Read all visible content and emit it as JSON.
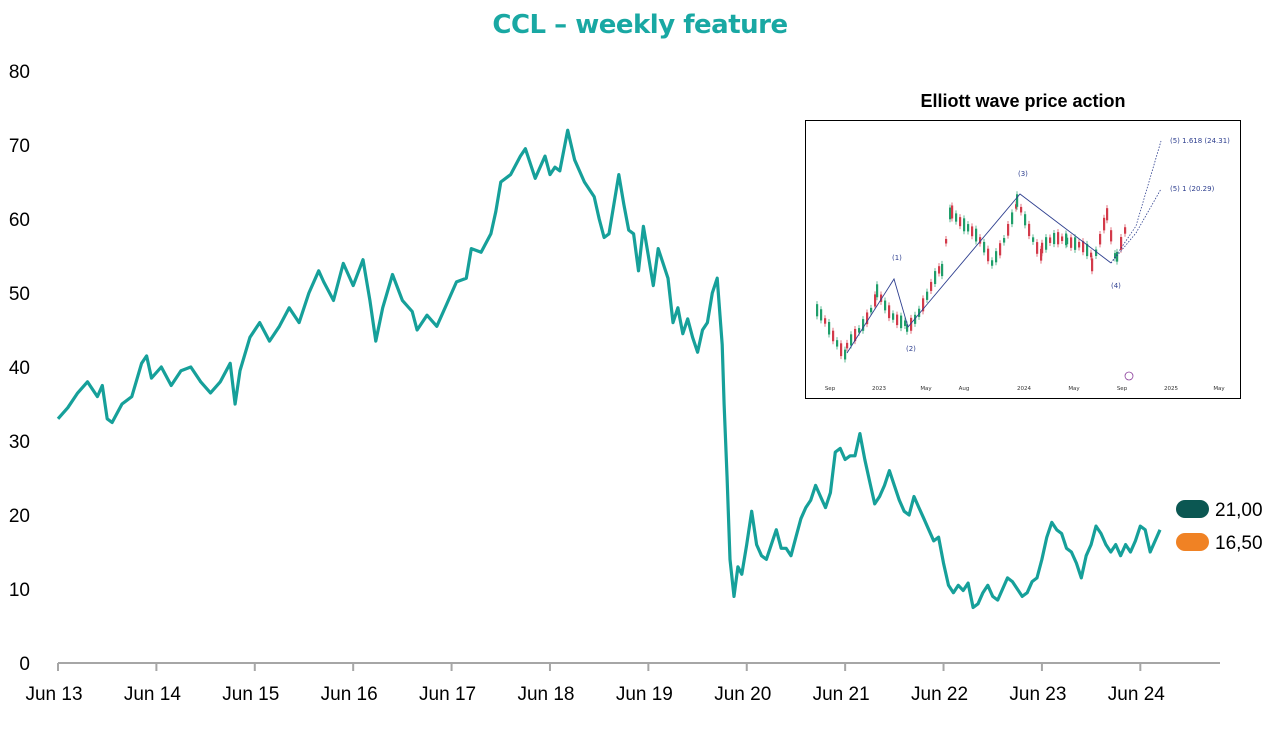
{
  "chart_data": {
    "type": "line",
    "title": "CCL – weekly feature",
    "xlabel": "",
    "ylabel": "",
    "ylim": [
      0,
      80
    ],
    "yticks": [
      0,
      10,
      20,
      30,
      40,
      50,
      60,
      70,
      80
    ],
    "xlim": [
      2013.45,
      2024.65
    ],
    "xticks": [
      {
        "label": "Jun 13",
        "x": 2013.45
      },
      {
        "label": "Jun 14",
        "x": 2014.45
      },
      {
        "label": "Jun 15",
        "x": 2015.45
      },
      {
        "label": "Jun 16",
        "x": 2016.45
      },
      {
        "label": "Jun 17",
        "x": 2017.45
      },
      {
        "label": "Jun 18",
        "x": 2018.45
      },
      {
        "label": "Jun 19",
        "x": 2019.45
      },
      {
        "label": "Jun 20",
        "x": 2020.45
      },
      {
        "label": "Jun 21",
        "x": 2021.45
      },
      {
        "label": "Jun 22",
        "x": 2022.45
      },
      {
        "label": "Jun 23",
        "x": 2023.45
      },
      {
        "label": "Jun 24",
        "x": 2024.45
      }
    ],
    "series": [
      {
        "color": "#16a09a",
        "points": [
          [
            2013.45,
            33.0
          ],
          [
            2013.55,
            34.5
          ],
          [
            2013.65,
            36.5
          ],
          [
            2013.75,
            38.0
          ],
          [
            2013.85,
            36.0
          ],
          [
            2013.9,
            37.5
          ],
          [
            2013.95,
            33.0
          ],
          [
            2014.0,
            32.5
          ],
          [
            2014.1,
            35.0
          ],
          [
            2014.2,
            36.0
          ],
          [
            2014.3,
            40.5
          ],
          [
            2014.35,
            41.5
          ],
          [
            2014.4,
            38.5
          ],
          [
            2014.5,
            40.0
          ],
          [
            2014.6,
            37.5
          ],
          [
            2014.7,
            39.5
          ],
          [
            2014.8,
            40.0
          ],
          [
            2014.9,
            38.0
          ],
          [
            2015.0,
            36.5
          ],
          [
            2015.1,
            38.0
          ],
          [
            2015.2,
            40.5
          ],
          [
            2015.25,
            35.0
          ],
          [
            2015.3,
            39.5
          ],
          [
            2015.4,
            44.0
          ],
          [
            2015.5,
            46.0
          ],
          [
            2015.6,
            43.5
          ],
          [
            2015.7,
            45.5
          ],
          [
            2015.8,
            48.0
          ],
          [
            2015.9,
            46.0
          ],
          [
            2016.0,
            50.0
          ],
          [
            2016.1,
            53.0
          ],
          [
            2016.15,
            51.5
          ],
          [
            2016.25,
            49.0
          ],
          [
            2016.35,
            54.0
          ],
          [
            2016.45,
            51.0
          ],
          [
            2016.55,
            54.5
          ],
          [
            2016.62,
            49.0
          ],
          [
            2016.68,
            43.5
          ],
          [
            2016.75,
            48.0
          ],
          [
            2016.85,
            52.5
          ],
          [
            2016.95,
            49.0
          ],
          [
            2017.05,
            47.5
          ],
          [
            2017.1,
            45.0
          ],
          [
            2017.2,
            47.0
          ],
          [
            2017.3,
            45.5
          ],
          [
            2017.4,
            48.5
          ],
          [
            2017.5,
            51.5
          ],
          [
            2017.6,
            52.0
          ],
          [
            2017.65,
            56.0
          ],
          [
            2017.75,
            55.5
          ],
          [
            2017.85,
            58.0
          ],
          [
            2017.9,
            61.0
          ],
          [
            2017.95,
            65.0
          ],
          [
            2018.05,
            66.0
          ],
          [
            2018.15,
            68.5
          ],
          [
            2018.2,
            69.5
          ],
          [
            2018.3,
            65.5
          ],
          [
            2018.4,
            68.5
          ],
          [
            2018.45,
            66.0
          ],
          [
            2018.5,
            67.0
          ],
          [
            2018.55,
            66.5
          ],
          [
            2018.63,
            72.0
          ],
          [
            2018.7,
            68.0
          ],
          [
            2018.8,
            65.0
          ],
          [
            2018.9,
            63.0
          ],
          [
            2018.95,
            60.0
          ],
          [
            2019.0,
            57.5
          ],
          [
            2019.05,
            58.0
          ],
          [
            2019.1,
            62.0
          ],
          [
            2019.15,
            66.0
          ],
          [
            2019.2,
            62.0
          ],
          [
            2019.25,
            58.5
          ],
          [
            2019.3,
            58.0
          ],
          [
            2019.35,
            53.0
          ],
          [
            2019.4,
            59.0
          ],
          [
            2019.45,
            55.0
          ],
          [
            2019.5,
            51.0
          ],
          [
            2019.55,
            56.0
          ],
          [
            2019.6,
            54.0
          ],
          [
            2019.65,
            52.0
          ],
          [
            2019.7,
            46.0
          ],
          [
            2019.75,
            48.0
          ],
          [
            2019.8,
            44.5
          ],
          [
            2019.85,
            46.5
          ],
          [
            2019.9,
            44.0
          ],
          [
            2019.95,
            42.0
          ],
          [
            2020.0,
            45.0
          ],
          [
            2020.05,
            46.0
          ],
          [
            2020.1,
            50.0
          ],
          [
            2020.15,
            52.0
          ],
          [
            2020.2,
            43.0
          ],
          [
            2020.22,
            35.0
          ],
          [
            2020.25,
            25.0
          ],
          [
            2020.28,
            14.0
          ],
          [
            2020.32,
            9.0
          ],
          [
            2020.36,
            13.0
          ],
          [
            2020.4,
            12.0
          ],
          [
            2020.45,
            16.0
          ],
          [
            2020.5,
            20.5
          ],
          [
            2020.55,
            16.0
          ],
          [
            2020.6,
            14.5
          ],
          [
            2020.65,
            14.0
          ],
          [
            2020.7,
            16.0
          ],
          [
            2020.75,
            18.0
          ],
          [
            2020.8,
            15.5
          ],
          [
            2020.85,
            15.5
          ],
          [
            2020.9,
            14.5
          ],
          [
            2020.95,
            17.0
          ],
          [
            2021.0,
            19.5
          ],
          [
            2021.05,
            21.0
          ],
          [
            2021.1,
            22.0
          ],
          [
            2021.15,
            24.0
          ],
          [
            2021.2,
            22.5
          ],
          [
            2021.25,
            21.0
          ],
          [
            2021.3,
            23.0
          ],
          [
            2021.35,
            28.5
          ],
          [
            2021.4,
            29.0
          ],
          [
            2021.45,
            27.5
          ],
          [
            2021.5,
            28.0
          ],
          [
            2021.55,
            28.0
          ],
          [
            2021.6,
            31.0
          ],
          [
            2021.65,
            27.5
          ],
          [
            2021.7,
            24.5
          ],
          [
            2021.75,
            21.5
          ],
          [
            2021.8,
            22.5
          ],
          [
            2021.85,
            24.0
          ],
          [
            2021.9,
            26.0
          ],
          [
            2021.95,
            24.0
          ],
          [
            2022.0,
            22.0
          ],
          [
            2022.05,
            20.5
          ],
          [
            2022.1,
            20.0
          ],
          [
            2022.15,
            22.5
          ],
          [
            2022.2,
            21.0
          ],
          [
            2022.25,
            19.5
          ],
          [
            2022.3,
            18.0
          ],
          [
            2022.35,
            16.5
          ],
          [
            2022.4,
            17.0
          ],
          [
            2022.45,
            13.5
          ],
          [
            2022.5,
            10.5
          ],
          [
            2022.55,
            9.5
          ],
          [
            2022.6,
            10.5
          ],
          [
            2022.65,
            9.8
          ],
          [
            2022.7,
            10.8
          ],
          [
            2022.75,
            7.5
          ],
          [
            2022.8,
            8.0
          ],
          [
            2022.85,
            9.5
          ],
          [
            2022.9,
            10.5
          ],
          [
            2022.95,
            9.0
          ],
          [
            2023.0,
            8.5
          ],
          [
            2023.05,
            10.0
          ],
          [
            2023.1,
            11.5
          ],
          [
            2023.15,
            11.0
          ],
          [
            2023.2,
            10.0
          ],
          [
            2023.25,
            9.0
          ],
          [
            2023.3,
            9.5
          ],
          [
            2023.35,
            11.0
          ],
          [
            2023.4,
            11.5
          ],
          [
            2023.45,
            14.0
          ],
          [
            2023.5,
            17.0
          ],
          [
            2023.55,
            19.0
          ],
          [
            2023.6,
            18.0
          ],
          [
            2023.65,
            17.5
          ],
          [
            2023.7,
            15.5
          ],
          [
            2023.75,
            15.0
          ],
          [
            2023.8,
            13.5
          ],
          [
            2023.85,
            11.5
          ],
          [
            2023.9,
            14.5
          ],
          [
            2023.95,
            16.0
          ],
          [
            2024.0,
            18.5
          ],
          [
            2024.05,
            17.5
          ],
          [
            2024.1,
            16.0
          ],
          [
            2024.15,
            15.0
          ],
          [
            2024.2,
            16.0
          ],
          [
            2024.25,
            14.5
          ],
          [
            2024.3,
            16.0
          ],
          [
            2024.35,
            15.0
          ],
          [
            2024.4,
            16.5
          ],
          [
            2024.45,
            18.5
          ],
          [
            2024.5,
            18.0
          ],
          [
            2024.55,
            15.0
          ],
          [
            2024.6,
            16.5
          ],
          [
            2024.65,
            18.0
          ]
        ]
      }
    ],
    "targets": [
      {
        "label": "21,00",
        "value": 21.0,
        "color": "#0b5752"
      },
      {
        "label": "16,50",
        "value": 16.5,
        "color": "#f08224"
      }
    ]
  },
  "inset": {
    "title": "Elliott wave price action",
    "wave_labels": [
      "(1)",
      "(2)",
      "(3)",
      "(4)",
      "(5) 1 (20.29)",
      "(5) 1.618 (24.31)"
    ],
    "axis_labels": [
      "Sep",
      "2023",
      "May",
      "Aug",
      "2024",
      "May",
      "Sep",
      "2025",
      "May"
    ],
    "colors": {
      "line": "#2e3f8f",
      "up": "#1f9e6a",
      "down": "#d33a4a"
    }
  }
}
